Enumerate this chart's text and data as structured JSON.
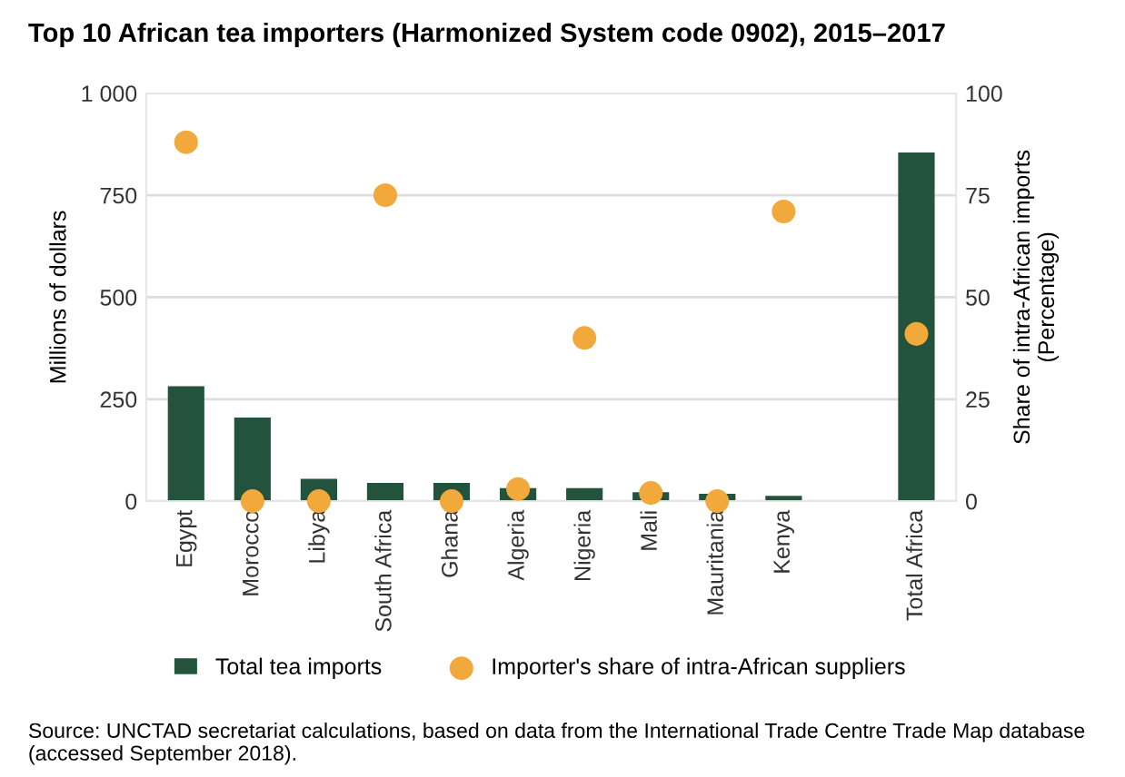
{
  "chart_data": {
    "type": "bar",
    "title": "Top 10 African tea importers (Harmonized System code 0902), 2015–2017",
    "categories": [
      "Egypt",
      "Morocco",
      "Libya",
      "South Africa",
      "Ghana",
      "Algeria",
      "Nigeria",
      "Mali",
      "Mauritania",
      "Kenya",
      null,
      "Total Africa"
    ],
    "series": [
      {
        "name": "Total tea imports",
        "color": "#23533c",
        "values": [
          282,
          205,
          55,
          45,
          45,
          32,
          32,
          22,
          18,
          13,
          null,
          855
        ]
      },
      {
        "name": "Importer's share of intra-African suppliers",
        "type": "scatter",
        "axis": "y2",
        "color": "#f2a93b",
        "values": [
          88,
          0,
          0,
          75,
          0,
          3,
          40,
          2,
          0,
          71,
          null,
          41
        ]
      }
    ],
    "ylabel": "Millions of dollars",
    "y2label": "Share of intra-African imports\n(Percentage)",
    "ylim": [
      0,
      1000
    ],
    "yticks": [
      0,
      250,
      500,
      750,
      {
        "value": 1000,
        "label": "1 000"
      }
    ],
    "y2lim": [
      0,
      100
    ],
    "y2ticks": [
      0,
      25,
      50,
      75,
      100
    ],
    "grid": "y",
    "legend": "bottom",
    "marker": "circle",
    "annotations": [
      "Source: UNCTAD secretariat calculations, based on data from the International Trade Centre Trade Map database (accessed September 2018)."
    ]
  }
}
